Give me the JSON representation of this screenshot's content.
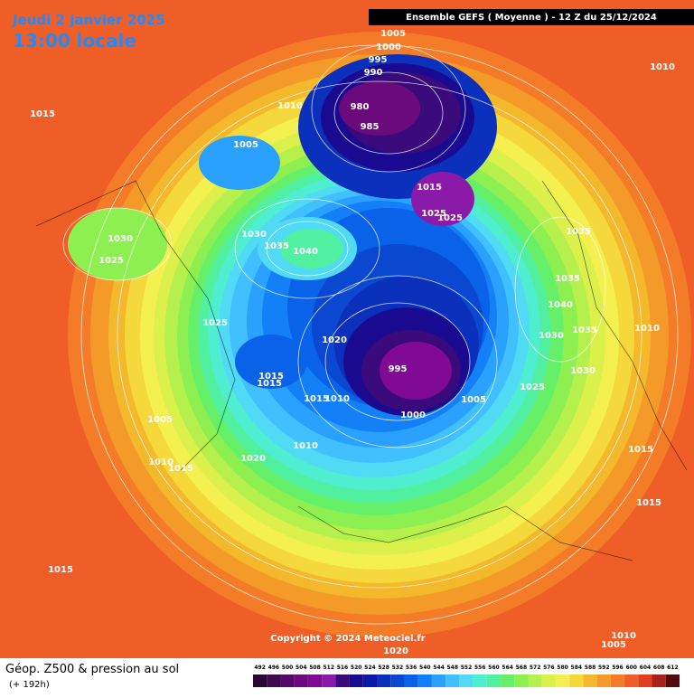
{
  "header": {
    "date": "Jeudi 2 janvier 2025",
    "time": "13:00 locale",
    "model": "Ensemble GEFS  ( Moyenne )  -  12 Z du 25/12/2024"
  },
  "map": {
    "isobar_labels": [
      "1005",
      "1000",
      "995",
      "990",
      "1010",
      "1015",
      "1010",
      "980",
      "985",
      "1005",
      "1015",
      "1025",
      "1025",
      "1035",
      "1030",
      "1030",
      "1035",
      "1040",
      "1025",
      "1035",
      "1040",
      "1025",
      "1020",
      "1010",
      "1030",
      "1035",
      "1030",
      "995",
      "1015",
      "1015",
      "1025",
      "1005",
      "1015",
      "1010",
      "1000",
      "1005",
      "1010",
      "1020",
      "1010",
      "1015",
      "1015",
      "1015",
      "1015",
      "1010",
      "1005",
      "1020"
    ]
  },
  "copyright": "Copyright © 2024 Meteociel.fr",
  "footer": {
    "title": "Géop. Z500 & pression au sol",
    "lead": "(+ 192h)"
  },
  "legend": {
    "levels": [
      492,
      496,
      500,
      504,
      508,
      512,
      516,
      520,
      524,
      528,
      532,
      536,
      540,
      544,
      548,
      552,
      556,
      560,
      564,
      568,
      572,
      576,
      580,
      584,
      588,
      592,
      596,
      600,
      604,
      608,
      612
    ],
    "colors": [
      "#2a0634",
      "#3e0a4c",
      "#520a64",
      "#6a0a7c",
      "#800a94",
      "#8c1aa8",
      "#3a0a7a",
      "#1a0a90",
      "#0a1aa6",
      "#0a30bc",
      "#0a48d2",
      "#0a62e8",
      "#1480f8",
      "#2aa0ff",
      "#40c0ff",
      "#50daf4",
      "#50eed0",
      "#50f0a0",
      "#66f06a",
      "#8ef050",
      "#b6f04c",
      "#dcf04c",
      "#f4f050",
      "#f4d83c",
      "#f4b82c",
      "#f49a28",
      "#f47c28",
      "#f05e28",
      "#e04020",
      "#a8201a",
      "#500a0a"
    ]
  }
}
